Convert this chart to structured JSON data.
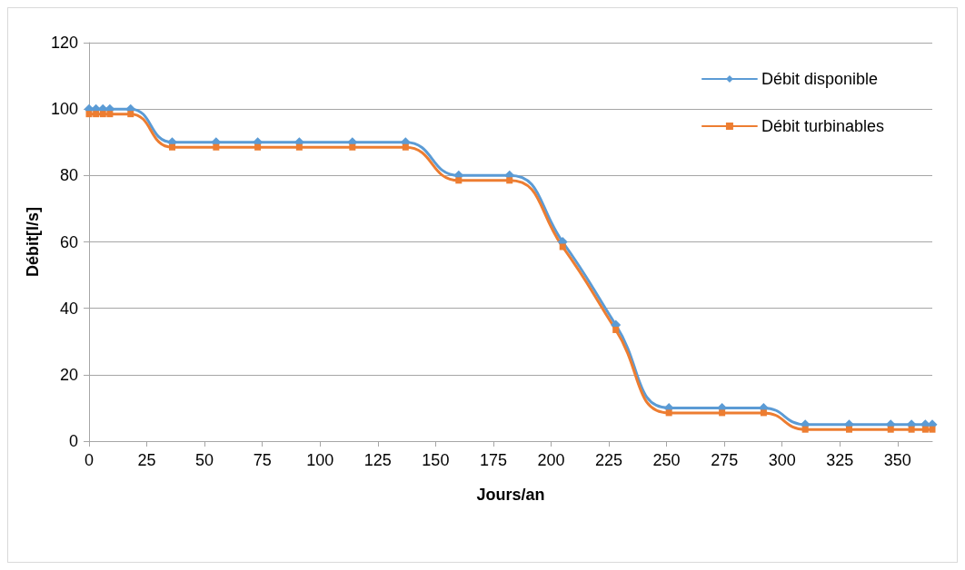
{
  "chart_data": {
    "type": "line",
    "xlabel": "Jours/an",
    "ylabel": "Débit[l/s]",
    "x": [
      0,
      3,
      6,
      9,
      18,
      36,
      55,
      73,
      91,
      114,
      137,
      160,
      182,
      205,
      228,
      251,
      274,
      292,
      310,
      329,
      347,
      356,
      362,
      365
    ],
    "series": [
      {
        "name": "Débit disponible",
        "color": "#5b9bd5",
        "marker": "diamond",
        "values": [
          100,
          100,
          100,
          100,
          100,
          90,
          90,
          90,
          90,
          90,
          90,
          80,
          80,
          60,
          35,
          10,
          10,
          10,
          5,
          5,
          5,
          5,
          5,
          5
        ]
      },
      {
        "name": "Débit turbinables",
        "color": "#ed7d31",
        "marker": "square",
        "values": [
          98.5,
          98.5,
          98.5,
          98.5,
          98.5,
          88.5,
          88.5,
          88.5,
          88.5,
          88.5,
          88.5,
          78.5,
          78.5,
          58.5,
          33.5,
          8.5,
          8.5,
          8.5,
          3.5,
          3.5,
          3.5,
          3.5,
          3.5,
          3.5
        ]
      }
    ],
    "xlim": [
      0,
      365
    ],
    "xticks": [
      0,
      25,
      50,
      75,
      100,
      125,
      150,
      175,
      200,
      225,
      250,
      275,
      300,
      325,
      350
    ],
    "ylim": [
      0,
      120
    ],
    "yticks": [
      0,
      20,
      40,
      60,
      80,
      100,
      120
    ],
    "grid": "y",
    "legend": "top right",
    "line_style": "solid"
  }
}
